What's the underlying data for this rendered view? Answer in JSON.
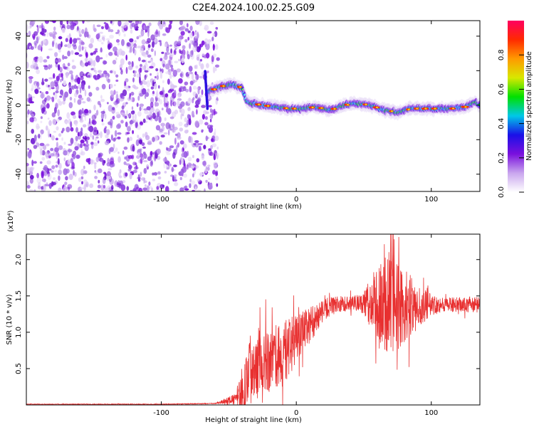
{
  "chart_data": [
    {
      "type": "heatmap",
      "title": "C2E4.2024.100.02.25.G09",
      "xlabel": "Height of straight line (km)",
      "ylabel": "Frequency (Hz)",
      "xlim": [
        -200,
        136
      ],
      "ylim": [
        -50,
        49
      ],
      "x_ticks": [
        -100,
        0,
        100
      ],
      "y_ticks": [
        -40,
        -20,
        0,
        20,
        40
      ],
      "colorbar": {
        "label": "Normalized spectral amplitude",
        "range": [
          0.0,
          1.0
        ],
        "ticks": [
          "0.0",
          "0.2",
          "0.4",
          "0.6",
          "0.8"
        ],
        "colors": [
          "#ffffff",
          "#c9a6ee",
          "#7a10dd",
          "#1a10e8",
          "#00c8e8",
          "#00e000",
          "#d8e800",
          "#ff9a00",
          "#ff2a00",
          "#ff0060"
        ]
      },
      "noise_region_x": [
        -200,
        -58
      ],
      "signal_track": [
        {
          "x": -65,
          "f": 8
        },
        {
          "x": -55,
          "f": 11
        },
        {
          "x": -47,
          "f": 12
        },
        {
          "x": -40,
          "f": 10
        },
        {
          "x": -37,
          "f": 2
        },
        {
          "x": -33,
          "f": 1
        },
        {
          "x": -25,
          "f": 0
        },
        {
          "x": -15,
          "f": -1
        },
        {
          "x": -5,
          "f": -2
        },
        {
          "x": 5,
          "f": -2
        },
        {
          "x": 15,
          "f": -1
        },
        {
          "x": 25,
          "f": -3
        },
        {
          "x": 35,
          "f": 0
        },
        {
          "x": 45,
          "f": 1
        },
        {
          "x": 55,
          "f": 0
        },
        {
          "x": 65,
          "f": -3
        },
        {
          "x": 75,
          "f": -4
        },
        {
          "x": 85,
          "f": -2
        },
        {
          "x": 95,
          "f": -2
        },
        {
          "x": 105,
          "f": -2
        },
        {
          "x": 115,
          "f": -2
        },
        {
          "x": 125,
          "f": -1
        },
        {
          "x": 132,
          "f": 2
        },
        {
          "x": 136,
          "f": 0
        }
      ]
    },
    {
      "type": "line",
      "xlabel": "Height of straight line (km)",
      "ylabel": "SNR (10 * v/v)",
      "y_multiplier": "(x10⁴)",
      "xlim": [
        -200,
        136
      ],
      "ylim": [
        0,
        2.35
      ],
      "x_ticks": [
        -100,
        0,
        100
      ],
      "y_ticks": [
        0.5,
        1.0,
        1.5,
        2.0
      ],
      "series_color": "#e83030",
      "series": [
        {
          "points": [
            [
              -200,
              0.01
            ],
            [
              -150,
              0.01
            ],
            [
              -100,
              0.01
            ],
            [
              -60,
              0.02
            ],
            [
              -45,
              0.08
            ],
            [
              -38,
              0.25
            ],
            [
              -35,
              0.5
            ],
            [
              -30,
              0.6
            ],
            [
              -25,
              0.7
            ],
            [
              -20,
              0.6
            ],
            [
              -15,
              0.65
            ],
            [
              -10,
              0.7
            ],
            [
              -5,
              0.8
            ],
            [
              0,
              0.9
            ],
            [
              5,
              1.0
            ],
            [
              10,
              1.1
            ],
            [
              15,
              1.2
            ],
            [
              20,
              1.3
            ],
            [
              25,
              1.35
            ],
            [
              30,
              1.38
            ],
            [
              40,
              1.4
            ],
            [
              50,
              1.4
            ],
            [
              60,
              1.4
            ],
            [
              65,
              1.4
            ],
            [
              70,
              1.4
            ],
            [
              80,
              1.35
            ],
            [
              90,
              1.35
            ],
            [
              100,
              1.38
            ],
            [
              110,
              1.38
            ],
            [
              120,
              1.38
            ],
            [
              130,
              1.38
            ],
            [
              136,
              1.38
            ]
          ],
          "spread": [
            [
              -200,
              0.005
            ],
            [
              -60,
              0.005
            ],
            [
              -45,
              0.08
            ],
            [
              -38,
              0.45
            ],
            [
              -30,
              0.55
            ],
            [
              -20,
              0.45
            ],
            [
              -10,
              0.45
            ],
            [
              0,
              0.35
            ],
            [
              10,
              0.25
            ],
            [
              20,
              0.15
            ],
            [
              30,
              0.12
            ],
            [
              40,
              0.1
            ],
            [
              50,
              0.15
            ],
            [
              55,
              0.35
            ],
            [
              60,
              0.55
            ],
            [
              70,
              0.75
            ],
            [
              80,
              0.55
            ],
            [
              90,
              0.3
            ],
            [
              100,
              0.15
            ],
            [
              110,
              0.1
            ],
            [
              120,
              0.1
            ],
            [
              130,
              0.12
            ],
            [
              136,
              0.1
            ]
          ]
        }
      ]
    }
  ]
}
